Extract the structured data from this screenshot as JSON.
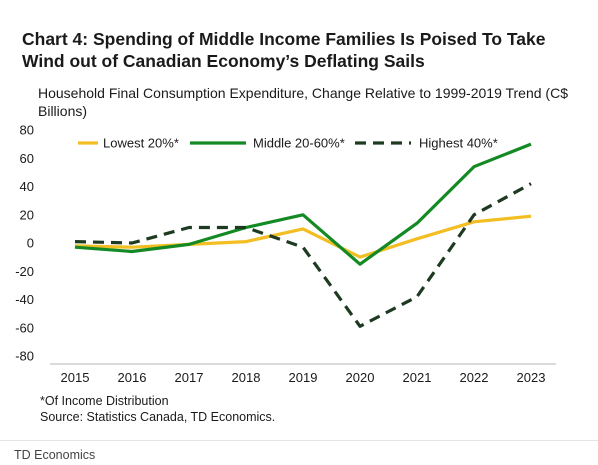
{
  "title": "Chart 4: Spending of Middle Income Families Is Poised To Take Wind out of Canadian Economy’s Deflating Sails",
  "subtitle": "Household Final Consumption Expenditure, Change Relative to 1999-2019 Trend (C$ Billions)",
  "notes": {
    "footnote": "*Of Income Distribution",
    "source": "Source: Statistics Canada, TD Economics."
  },
  "footer": "TD Economics",
  "chart_data": {
    "type": "line",
    "x": [
      "2015",
      "2016",
      "2017",
      "2018",
      "2019",
      "2020",
      "2021",
      "2022",
      "2023"
    ],
    "ylim": [
      -80,
      80
    ],
    "yticks": [
      80,
      60,
      40,
      20,
      0,
      -20,
      -40,
      -60,
      -80
    ],
    "grid": false,
    "legend_position": "top",
    "series": [
      {
        "name": "Lowest 20%*",
        "color": "#F2BE22",
        "style": "solid",
        "values": [
          -2,
          -3,
          -1,
          1,
          10,
          -10,
          3,
          15,
          19
        ]
      },
      {
        "name": "Middle 20-60%*",
        "color": "#138A24",
        "style": "solid",
        "values": [
          -3,
          -6,
          -1,
          11,
          20,
          -15,
          14,
          54,
          70
        ]
      },
      {
        "name": "Highest 40%*",
        "color": "#1E3B22",
        "style": "dashed",
        "values": [
          1,
          0,
          11,
          11,
          -3,
          -59,
          -38,
          20,
          42
        ]
      }
    ]
  }
}
